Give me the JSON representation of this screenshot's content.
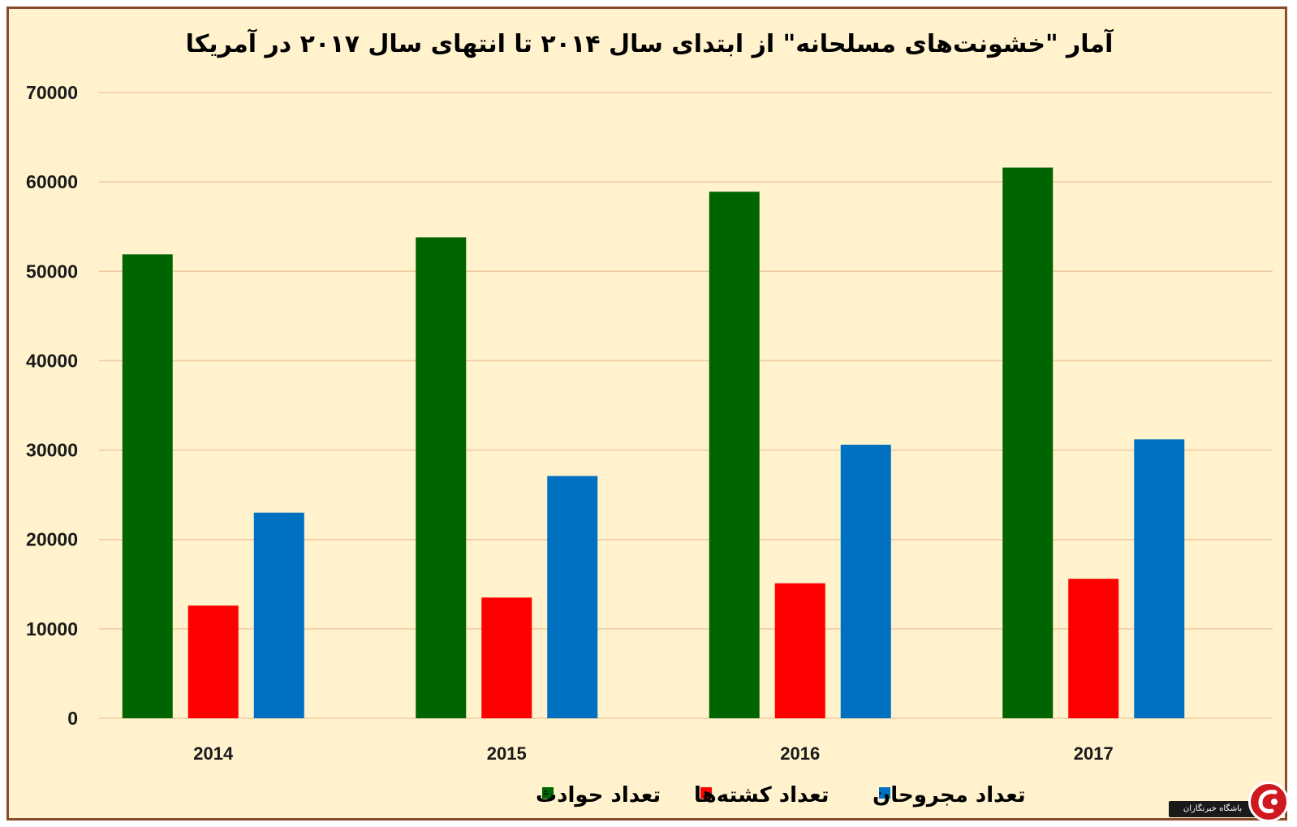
{
  "chart_data": {
    "type": "bar",
    "title": "آمار \"خشونت‌های مسلحانه\" از ابتدای سال ۲۰۱۴ تا انتهای سال ۲۰۱۷ در آمریکا",
    "categories": [
      "2014",
      "2015",
      "2016",
      "2017"
    ],
    "series": [
      {
        "name": "تعداد حوادث",
        "color": "#006400",
        "values": [
          51900,
          53800,
          58900,
          61600
        ]
      },
      {
        "name": "تعداد کشته‌ها",
        "color": "#ff0000",
        "values": [
          12600,
          13500,
          15100,
          15600
        ]
      },
      {
        "name": "تعداد مجروحان",
        "color": "#0070c0",
        "values": [
          23000,
          27100,
          30600,
          31200
        ]
      }
    ],
    "ylim": [
      0,
      70000
    ],
    "yticks": [
      0,
      10000,
      20000,
      30000,
      40000,
      50000,
      60000,
      70000
    ],
    "grid": true,
    "gridline_color": "#f0c9a0",
    "legend_position": "bottom-center",
    "background_color": "#fff2cc",
    "border_color": "#8b4a2b",
    "xlabel": "",
    "ylabel": ""
  },
  "logo": {
    "text": "باشگاه خبرنگاران",
    "color": "#d0191f"
  }
}
